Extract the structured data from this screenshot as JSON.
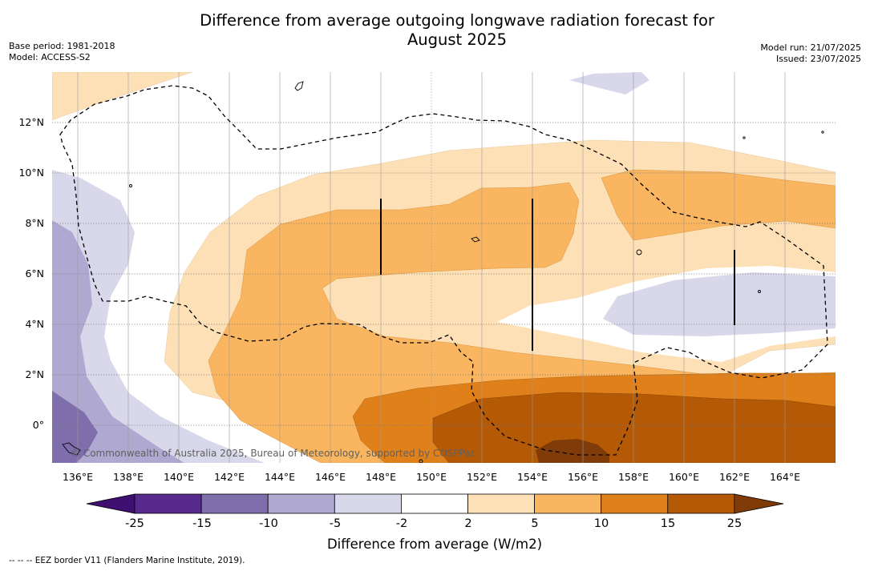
{
  "title_line1": "Difference from average outgoing longwave radiation forecast for",
  "title_line2": "August 2025",
  "meta_left": {
    "base_period": "Base period: 1981-2018",
    "model": "Model: ACCESS-S2"
  },
  "meta_right": {
    "model_run": "Model run: 21/07/2025",
    "issued": "Issued: 23/07/2025"
  },
  "map": {
    "lon_labels": [
      "136°E",
      "138°E",
      "140°E",
      "142°E",
      "144°E",
      "146°E",
      "148°E",
      "150°E",
      "152°E",
      "154°E",
      "156°E",
      "158°E",
      "160°E",
      "162°E",
      "164°E"
    ],
    "lat_labels": [
      "12°N",
      "10°N",
      "8°N",
      "6°N",
      "4°N",
      "2°N",
      "0°"
    ],
    "copyright": "© Commonwealth of Australia 2025, Bureau of Meteorology, supported by COSPPac"
  },
  "colorbar": {
    "labels": [
      "-25",
      "-15",
      "-10",
      "-5",
      "-2",
      "2",
      "5",
      "10",
      "15",
      "25"
    ],
    "colors": [
      "#3f0f72",
      "#582a8e",
      "#7f6eac",
      "#afa8d1",
      "#d8d8ea",
      "#ffffff",
      "#fde0b6",
      "#f9b560",
      "#e0801a",
      "#b45a07",
      "#7f3b08"
    ],
    "axis_label": "Difference from average (W/m2)"
  },
  "footer": "--  --  -- EEZ border V11 (Flanders Marine Institute, 2019)."
}
